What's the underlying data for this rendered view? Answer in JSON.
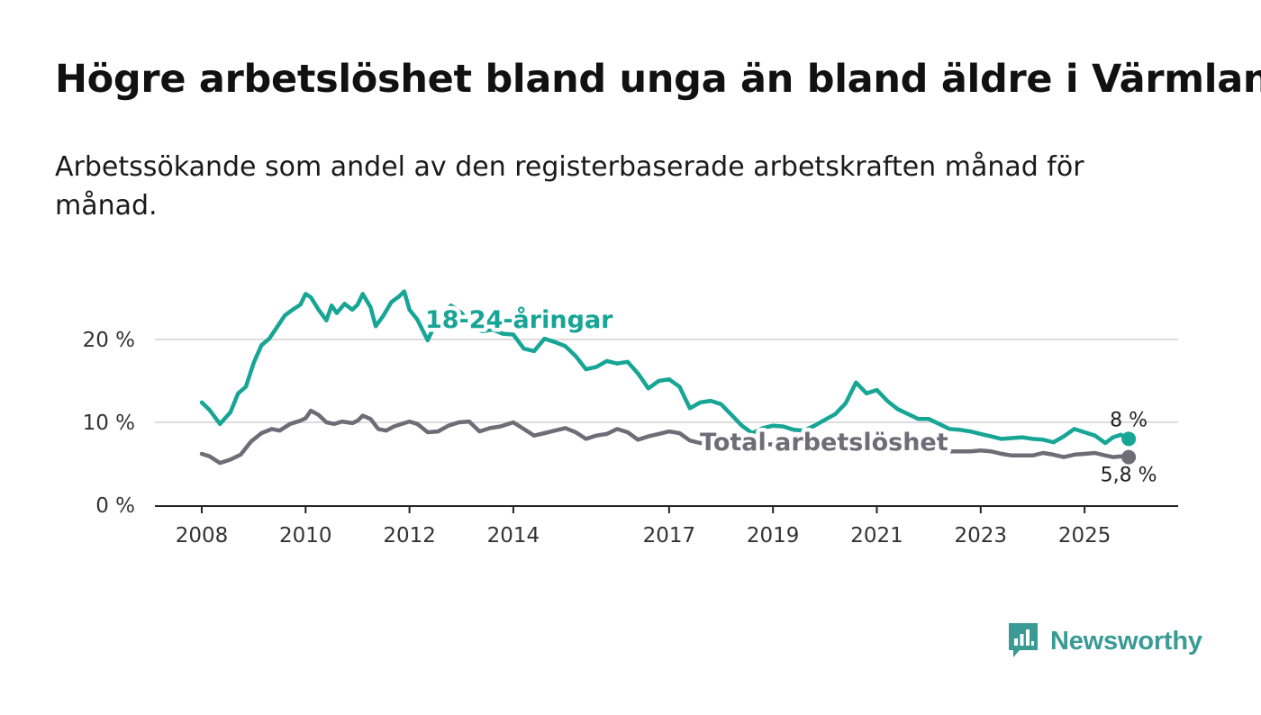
{
  "title": "Högre arbetslöshet bland unga än bland äldre i Värmland",
  "subtitle": "Arbetssökande som andel av den registerbaserade arbetskraften månad för månad.",
  "brand": {
    "name": "Newsworthy",
    "color": "#3a9a94",
    "icon": "bar-chart-speech-bubble-icon"
  },
  "chart_data": {
    "type": "line",
    "title": "Högre arbetslöshet bland unga än bland äldre i Värmland",
    "xlabel": "",
    "ylabel": "",
    "xlim": [
      2008,
      2025.9
    ],
    "ylim": [
      0,
      27
    ],
    "x_ticks": [
      {
        "value": 2008,
        "label": "2008"
      },
      {
        "value": 2010,
        "label": "2010"
      },
      {
        "value": 2012,
        "label": "2012"
      },
      {
        "value": 2014,
        "label": "2014"
      },
      {
        "value": 2017,
        "label": "2017"
      },
      {
        "value": 2019,
        "label": "2019"
      },
      {
        "value": 2021,
        "label": "2021"
      },
      {
        "value": 2023,
        "label": "2023"
      },
      {
        "value": 2025,
        "label": "2025"
      }
    ],
    "y_ticks": [
      {
        "value": 0,
        "label": "0 %"
      },
      {
        "value": 10,
        "label": "10 %"
      },
      {
        "value": 20,
        "label": "20 %"
      }
    ],
    "grid": true,
    "series": [
      {
        "name": "18-24-åringar",
        "color": "#17a596",
        "end_label": "8 %",
        "x": [
          2008.0,
          2008.15,
          2008.35,
          2008.55,
          2008.7,
          2008.85,
          2009.0,
          2009.15,
          2009.3,
          2009.45,
          2009.6,
          2009.75,
          2009.9,
          2010.0,
          2010.1,
          2010.25,
          2010.4,
          2010.5,
          2010.6,
          2010.75,
          2010.9,
          2011.0,
          2011.1,
          2011.25,
          2011.35,
          2011.5,
          2011.65,
          2011.8,
          2011.9,
          2012.0,
          2012.15,
          2012.35,
          2012.5,
          2012.65,
          2012.8,
          2013.0,
          2013.2,
          2013.4,
          2013.6,
          2013.8,
          2014.0,
          2014.2,
          2014.4,
          2014.6,
          2014.8,
          2015.0,
          2015.2,
          2015.4,
          2015.6,
          2015.8,
          2016.0,
          2016.2,
          2016.4,
          2016.6,
          2016.8,
          2017.0,
          2017.2,
          2017.4,
          2017.6,
          2017.8,
          2018.0,
          2018.2,
          2018.4,
          2018.6,
          2018.8,
          2019.0,
          2019.2,
          2019.4,
          2019.6,
          2019.8,
          2020.0,
          2020.2,
          2020.4,
          2020.6,
          2020.8,
          2021.0,
          2021.2,
          2021.4,
          2021.6,
          2021.8,
          2022.0,
          2022.2,
          2022.4,
          2022.6,
          2022.8,
          2023.0,
          2023.2,
          2023.4,
          2023.6,
          2023.8,
          2024.0,
          2024.2,
          2024.4,
          2024.6,
          2024.8,
          2025.0,
          2025.2,
          2025.4,
          2025.55,
          2025.7,
          2025.85
        ],
        "y": [
          12.4,
          11.5,
          9.8,
          11.2,
          13.5,
          14.3,
          17.2,
          19.3,
          20.1,
          21.5,
          22.9,
          23.6,
          24.2,
          25.5,
          25.1,
          23.6,
          22.3,
          24.1,
          23.2,
          24.3,
          23.6,
          24.2,
          25.5,
          23.9,
          21.6,
          22.9,
          24.5,
          25.2,
          25.8,
          23.6,
          22.4,
          19.9,
          21.9,
          23.1,
          24.1,
          23.2,
          21.6,
          21.0,
          21.2,
          20.7,
          20.6,
          18.9,
          18.6,
          20.1,
          19.7,
          19.2,
          18.0,
          16.4,
          16.7,
          17.4,
          17.1,
          17.3,
          15.9,
          14.1,
          15.0,
          15.2,
          14.3,
          11.7,
          12.4,
          12.6,
          12.2,
          10.9,
          9.6,
          8.7,
          9.3,
          9.6,
          9.5,
          9.1,
          9.0,
          9.6,
          10.3,
          11.0,
          12.3,
          14.8,
          13.5,
          13.9,
          12.6,
          11.6,
          11.0,
          10.4,
          10.4,
          9.8,
          9.2,
          9.1,
          8.9,
          8.6,
          8.3,
          8.0,
          8.1,
          8.2,
          8.0,
          7.9,
          7.6,
          8.3,
          9.2,
          8.8,
          8.4,
          7.5,
          8.2,
          8.5,
          8.0
        ]
      },
      {
        "name": "Total arbetslöshet",
        "color": "#6e6c77",
        "end_label": "5,8 %",
        "x": [
          2008.0,
          2008.15,
          2008.35,
          2008.55,
          2008.75,
          2008.95,
          2009.15,
          2009.35,
          2009.5,
          2009.7,
          2009.9,
          2010.0,
          2010.1,
          2010.25,
          2010.4,
          2010.55,
          2010.7,
          2010.9,
          2011.0,
          2011.1,
          2011.25,
          2011.4,
          2011.55,
          2011.7,
          2011.9,
          2012.0,
          2012.15,
          2012.35,
          2012.55,
          2012.75,
          2012.95,
          2013.15,
          2013.35,
          2013.55,
          2013.75,
          2014.0,
          2014.2,
          2014.4,
          2014.6,
          2014.8,
          2015.0,
          2015.2,
          2015.4,
          2015.6,
          2015.8,
          2016.0,
          2016.2,
          2016.4,
          2016.6,
          2016.8,
          2017.0,
          2017.2,
          2017.4,
          2017.6,
          2017.8,
          2018.0,
          2018.2,
          2018.4,
          2018.6,
          2018.8,
          2019.0,
          2019.2,
          2019.4,
          2019.6,
          2019.8,
          2020.0,
          2020.2,
          2020.4,
          2020.6,
          2020.8,
          2021.0,
          2021.2,
          2021.4,
          2021.6,
          2021.8,
          2022.0,
          2022.2,
          2022.4,
          2022.6,
          2022.8,
          2023.0,
          2023.2,
          2023.4,
          2023.6,
          2023.8,
          2024.0,
          2024.2,
          2024.4,
          2024.6,
          2024.8,
          2025.0,
          2025.2,
          2025.4,
          2025.55,
          2025.7,
          2025.85
        ],
        "y": [
          6.2,
          5.9,
          5.1,
          5.5,
          6.1,
          7.7,
          8.7,
          9.2,
          9.0,
          9.8,
          10.2,
          10.5,
          11.4,
          10.9,
          10.0,
          9.8,
          10.1,
          9.9,
          10.2,
          10.8,
          10.4,
          9.2,
          9.0,
          9.5,
          9.9,
          10.1,
          9.8,
          8.8,
          8.9,
          9.6,
          10.0,
          10.1,
          8.9,
          9.3,
          9.5,
          10.0,
          9.2,
          8.4,
          8.7,
          9.0,
          9.3,
          8.8,
          8.0,
          8.4,
          8.6,
          9.2,
          8.8,
          7.9,
          8.3,
          8.6,
          8.9,
          8.7,
          7.8,
          7.5,
          7.6,
          7.6,
          7.4,
          7.3,
          7.5,
          7.4,
          7.3,
          7.2,
          7.6,
          7.4,
          7.5,
          7.6,
          7.7,
          7.8,
          7.7,
          7.6,
          7.6,
          7.5,
          7.4,
          7.2,
          7.0,
          6.8,
          6.7,
          6.5,
          6.5,
          6.5,
          6.6,
          6.5,
          6.2,
          6.0,
          6.0,
          6.0,
          6.3,
          6.1,
          5.8,
          6.1,
          6.2,
          6.3,
          6.0,
          5.8,
          5.9,
          5.8
        ]
      }
    ],
    "annotations": [
      {
        "text": "18-24-åringar",
        "series": "18-24-åringar"
      },
      {
        "text": "Total arbetslöshet",
        "series": "Total arbetslöshet"
      }
    ]
  }
}
